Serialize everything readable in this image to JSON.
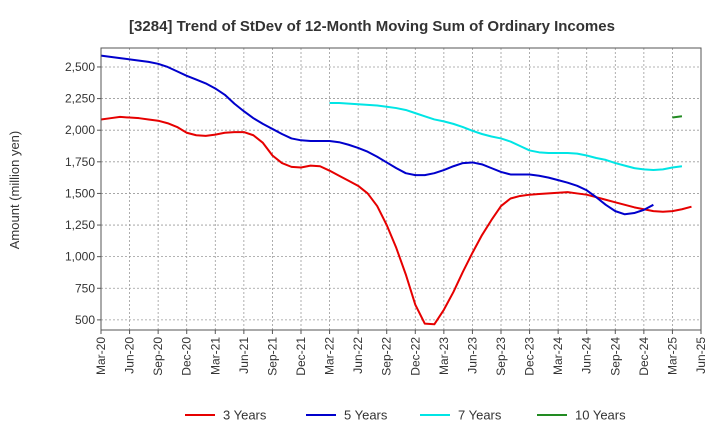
{
  "chart_data": {
    "type": "line",
    "title": "[3284]  Trend of StDev of 12-Month Moving Sum of Ordinary Incomes",
    "xlabel": "",
    "ylabel": "Amount (million yen)",
    "ylim": [
      420,
      2650
    ],
    "yticks": [
      500,
      750,
      1000,
      1250,
      1500,
      1750,
      2000,
      2250,
      2500
    ],
    "ytick_labels": [
      "500",
      "750",
      "1,000",
      "1,250",
      "1,500",
      "1,750",
      "2,000",
      "2,250",
      "2,500"
    ],
    "x_start": "Mar-20",
    "x_months_total": 63,
    "x_tick_every_months": 3,
    "xtick_labels": [
      "Mar-20",
      "Jun-20",
      "Sep-20",
      "Dec-20",
      "Mar-21",
      "Jun-21",
      "Sep-21",
      "Dec-21",
      "Mar-22",
      "Jun-22",
      "Sep-22",
      "Dec-22",
      "Mar-23",
      "Jun-23",
      "Sep-23",
      "Dec-23",
      "Mar-24",
      "Jun-24",
      "Sep-24",
      "Dec-24",
      "Mar-25",
      "Jun-25"
    ],
    "series": [
      {
        "name": "3 Years",
        "color": "#e60000",
        "start_month_index": 0,
        "values": [
          2085,
          2095,
          2105,
          2100,
          2095,
          2085,
          2075,
          2055,
          2025,
          1980,
          1960,
          1955,
          1965,
          1980,
          1985,
          1985,
          1960,
          1900,
          1800,
          1740,
          1710,
          1705,
          1720,
          1715,
          1680,
          1640,
          1600,
          1560,
          1500,
          1400,
          1250,
          1070,
          860,
          620,
          470,
          465,
          580,
          720,
          880,
          1030,
          1170,
          1290,
          1400,
          1460,
          1480,
          1490,
          1495,
          1500,
          1505,
          1510,
          1500,
          1490,
          1470,
          1450,
          1430,
          1410,
          1390,
          1375,
          1360,
          1355,
          1360,
          1375,
          1395
        ]
      },
      {
        "name": "5 Years",
        "color": "#0000cc",
        "start_month_index": 0,
        "values": [
          2590,
          2580,
          2570,
          2560,
          2550,
          2540,
          2525,
          2500,
          2465,
          2430,
          2400,
          2370,
          2330,
          2280,
          2210,
          2150,
          2095,
          2050,
          2010,
          1970,
          1935,
          1920,
          1915,
          1915,
          1915,
          1905,
          1885,
          1860,
          1830,
          1790,
          1745,
          1700,
          1660,
          1645,
          1645,
          1660,
          1685,
          1715,
          1740,
          1745,
          1730,
          1700,
          1670,
          1650,
          1650,
          1650,
          1640,
          1625,
          1605,
          1585,
          1560,
          1525,
          1470,
          1410,
          1360,
          1335,
          1345,
          1370,
          1410
        ]
      },
      {
        "name": "7 Years",
        "color": "#00e5e5",
        "start_month_index": 24,
        "values": [
          2215,
          2215,
          2210,
          2205,
          2200,
          2195,
          2185,
          2175,
          2160,
          2135,
          2110,
          2085,
          2070,
          2050,
          2025,
          1995,
          1970,
          1950,
          1935,
          1910,
          1875,
          1840,
          1825,
          1820,
          1820,
          1820,
          1815,
          1800,
          1780,
          1765,
          1740,
          1720,
          1700,
          1690,
          1685,
          1690,
          1705,
          1715
        ]
      },
      {
        "name": "10 Years",
        "color": "#228b22",
        "start_month_index": 60,
        "values": [
          2100,
          2110
        ]
      }
    ]
  }
}
